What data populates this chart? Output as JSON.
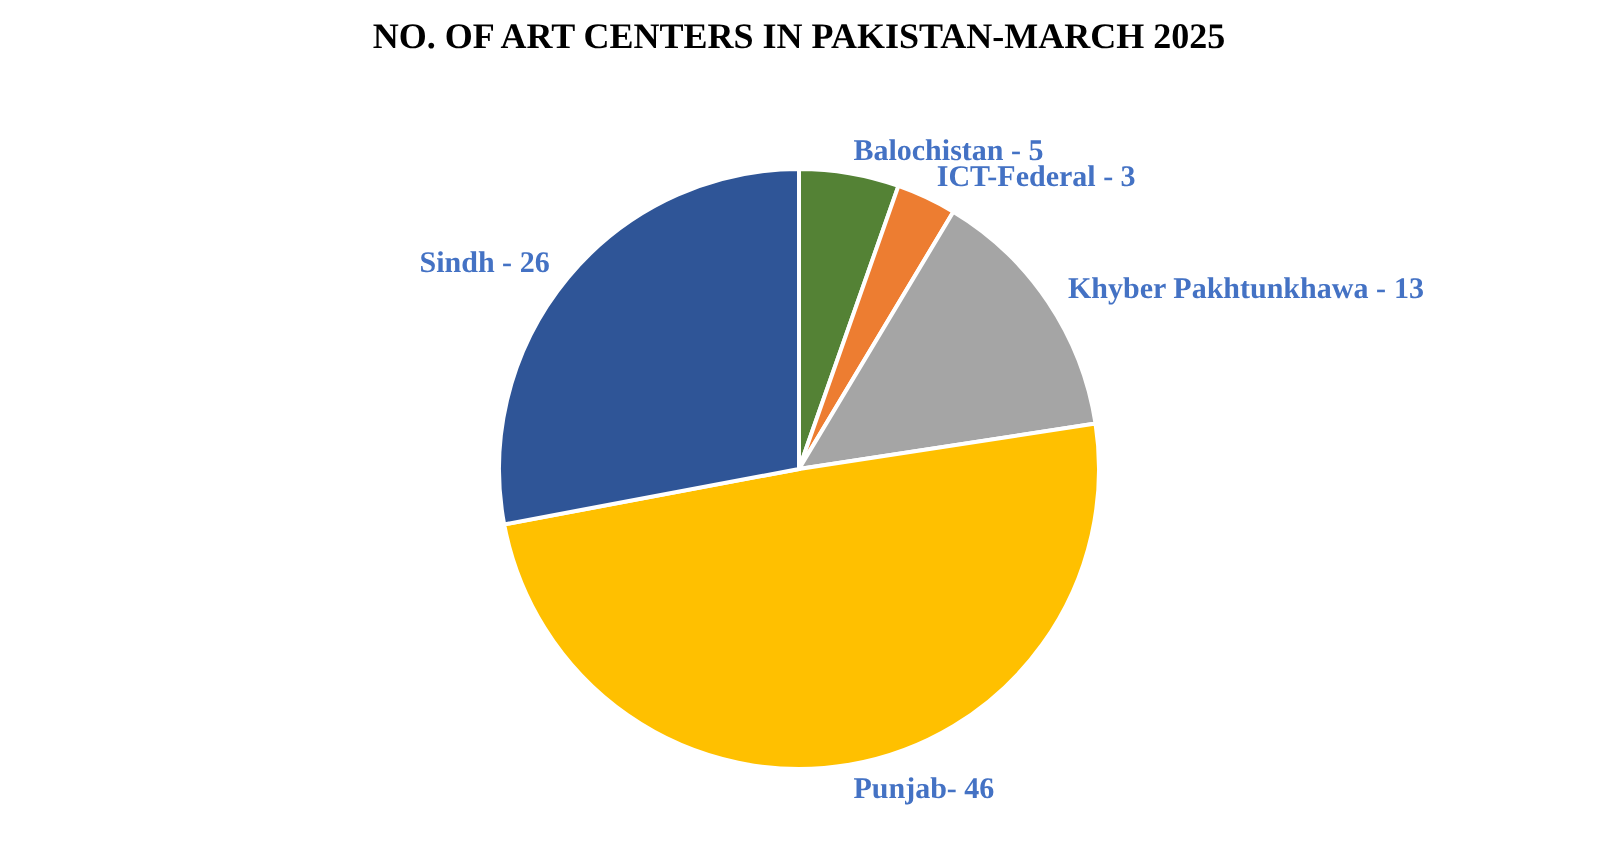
{
  "chart_data": {
    "type": "pie",
    "title": "NO. OF ART CENTERS IN PAKISTAN-MARCH 2025",
    "categories": [
      "Balochistan -",
      "ICT-Federal -",
      "Khyber Pakhtunkhawa -",
      "Punjab-",
      "Sindh -"
    ],
    "values": [
      5,
      3,
      13,
      46,
      26
    ],
    "data_labels": true,
    "colors": [
      "#548235",
      "#ed7d31",
      "#a5a5a5",
      "#ffc000",
      "#2f5597"
    ],
    "legend": false
  }
}
